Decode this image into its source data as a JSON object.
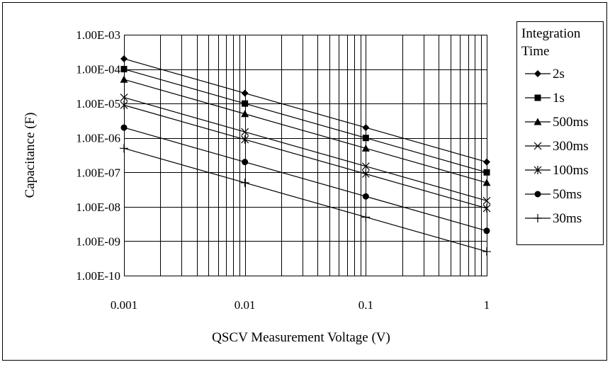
{
  "chart_data": {
    "type": "line",
    "title": "",
    "xlabel": "QSCV Measurement Voltage (V)",
    "ylabel": "Capacitance (F)",
    "x_scale": "log",
    "y_scale": "log",
    "xlim": [
      0.001,
      1
    ],
    "ylim": [
      1e-10,
      0.001
    ],
    "grid": true,
    "legend_position": "right",
    "legend_title": [
      "Integration",
      "Time"
    ],
    "x_tick_labels": [
      "0.001",
      "0.01",
      "0.1",
      "1"
    ],
    "y_tick_labels": [
      "1.00E-10",
      "1.00E-09",
      "1.00E-08",
      "1.00E-07",
      "1.00E-06",
      "1.00E-05",
      "1.00E-04",
      "1.00E-03"
    ],
    "x": [
      0.001,
      0.01,
      0.1,
      1
    ],
    "series": [
      {
        "name": "2s",
        "marker": "diamond",
        "values": [
          0.0002,
          2e-05,
          2e-06,
          2e-07
        ]
      },
      {
        "name": "1s",
        "marker": "square",
        "values": [
          0.0001,
          1e-05,
          1e-06,
          1e-07
        ]
      },
      {
        "name": "500ms",
        "marker": "triangle",
        "values": [
          5e-05,
          5e-06,
          5e-07,
          5e-08
        ]
      },
      {
        "name": "300ms",
        "marker": "x",
        "values": [
          1.5e-05,
          1.5e-06,
          1.5e-07,
          1.5e-08
        ]
      },
      {
        "name": "100ms",
        "marker": "asterisk",
        "values": [
          9e-06,
          9e-07,
          9e-08,
          9e-09
        ]
      },
      {
        "name": "50ms",
        "marker": "circle",
        "values": [
          2e-06,
          2e-07,
          2e-08,
          2e-09
        ]
      },
      {
        "name": "30ms",
        "marker": "plus",
        "values": [
          5e-07,
          5e-08,
          5e-09,
          5e-10
        ]
      }
    ],
    "colors": {
      "line": "#000000",
      "grid": "#000000",
      "background": "#ffffff"
    }
  }
}
